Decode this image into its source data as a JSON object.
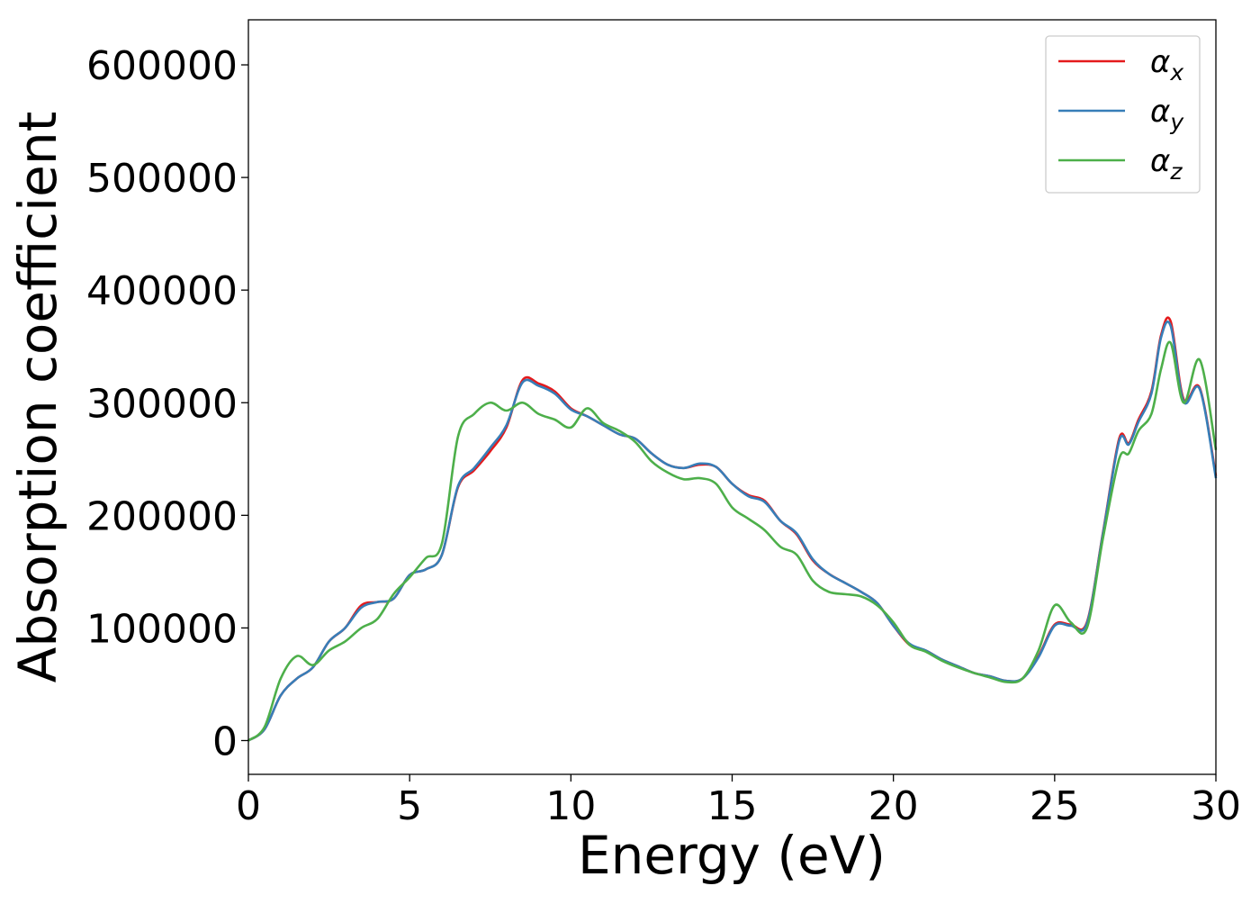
{
  "chart_data": {
    "type": "line",
    "title": "",
    "xlabel": "Energy (eV)",
    "ylabel": "Absorption coefficient",
    "xlim": [
      0,
      30
    ],
    "ylim": [
      -30000,
      640000
    ],
    "xticks": [
      0,
      5,
      10,
      15,
      20,
      25,
      30
    ],
    "yticks": [
      0,
      100000,
      200000,
      300000,
      400000,
      500000,
      600000
    ],
    "grid": false,
    "legend_position": "top-right",
    "series": [
      {
        "name": "α_x",
        "legend_main": "α",
        "legend_sub": "x",
        "color": "#e41a1c",
        "x": [
          0,
          0.5,
          1,
          1.5,
          2,
          2.5,
          3,
          3.5,
          4,
          4.5,
          5,
          5.5,
          6,
          6.5,
          7,
          7.5,
          8,
          8.5,
          9,
          9.5,
          10,
          10.5,
          11,
          11.5,
          12,
          12.5,
          13,
          13.5,
          14,
          14.5,
          15,
          15.5,
          16,
          16.5,
          17,
          17.5,
          18,
          18.5,
          19,
          19.5,
          20,
          20.5,
          21,
          21.5,
          22,
          22.5,
          23,
          23.5,
          24,
          24.5,
          25,
          25.5,
          26,
          26.5,
          27,
          27.3,
          27.6,
          28,
          28.3,
          28.6,
          29,
          29.5,
          30
        ],
        "y": [
          0,
          10000,
          40000,
          55000,
          65000,
          88000,
          100000,
          120000,
          123000,
          126000,
          147000,
          152000,
          165000,
          225000,
          240000,
          257000,
          278000,
          320000,
          317000,
          310000,
          295000,
          288000,
          280000,
          272000,
          268000,
          255000,
          245000,
          242000,
          245000,
          243000,
          228000,
          218000,
          213000,
          195000,
          183000,
          160000,
          148000,
          140000,
          132000,
          122000,
          102000,
          85000,
          80000,
          72000,
          66000,
          60000,
          57000,
          53000,
          55000,
          75000,
          103000,
          103000,
          105000,
          185000,
          268000,
          264000,
          285000,
          310000,
          360000,
          372000,
          303000,
          313000,
          235000
        ]
      },
      {
        "name": "α_y",
        "legend_main": "α",
        "legend_sub": "y",
        "color": "#377eb8",
        "x": [
          0,
          0.5,
          1,
          1.5,
          2,
          2.5,
          3,
          3.5,
          4,
          4.5,
          5,
          5.5,
          6,
          6.5,
          7,
          7.5,
          8,
          8.5,
          9,
          9.5,
          10,
          10.5,
          11,
          11.5,
          12,
          12.5,
          13,
          13.5,
          14,
          14.5,
          15,
          15.5,
          16,
          16.5,
          17,
          17.5,
          18,
          18.5,
          19,
          19.5,
          20,
          20.5,
          21,
          21.5,
          22,
          22.5,
          23,
          23.5,
          24,
          24.5,
          25,
          25.5,
          26,
          26.5,
          27,
          27.3,
          27.6,
          28,
          28.3,
          28.6,
          29,
          29.5,
          30
        ],
        "y": [
          0,
          10000,
          40000,
          55000,
          65000,
          88000,
          100000,
          118000,
          123000,
          126000,
          147000,
          152000,
          165000,
          226000,
          242000,
          260000,
          280000,
          318000,
          315000,
          308000,
          294000,
          288000,
          280000,
          272000,
          268000,
          255000,
          245000,
          242000,
          246000,
          243000,
          228000,
          217000,
          212000,
          195000,
          184000,
          161000,
          148000,
          140000,
          132000,
          122000,
          102000,
          86000,
          80000,
          72000,
          66000,
          60000,
          57000,
          53000,
          55000,
          74000,
          102000,
          102000,
          104000,
          184000,
          266000,
          263000,
          283000,
          308000,
          358000,
          368000,
          301000,
          312000,
          233000
        ]
      },
      {
        "name": "α_z",
        "legend_main": "α",
        "legend_sub": "z",
        "color": "#4daf4a",
        "x": [
          0,
          0.5,
          1,
          1.5,
          2,
          2.5,
          3,
          3.5,
          4,
          4.5,
          5,
          5.5,
          6,
          6.5,
          7,
          7.5,
          8,
          8.5,
          9,
          9.5,
          10,
          10.5,
          11,
          11.5,
          12,
          12.5,
          13,
          13.5,
          14,
          14.5,
          15,
          15.5,
          16,
          16.5,
          17,
          17.5,
          18,
          18.5,
          19,
          19.5,
          20,
          20.5,
          21,
          21.5,
          22,
          22.5,
          23,
          23.5,
          24,
          24.5,
          25,
          25.5,
          26,
          26.5,
          27,
          27.3,
          27.6,
          28,
          28.3,
          28.6,
          29,
          29.5,
          30
        ],
        "y": [
          0,
          12000,
          55000,
          75000,
          67000,
          80000,
          88000,
          100000,
          108000,
          130000,
          145000,
          162000,
          175000,
          270000,
          290000,
          300000,
          293000,
          300000,
          290000,
          285000,
          278000,
          295000,
          282000,
          275000,
          265000,
          248000,
          238000,
          232000,
          233000,
          228000,
          207000,
          197000,
          187000,
          172000,
          165000,
          142000,
          132000,
          130000,
          128000,
          120000,
          105000,
          85000,
          79000,
          71000,
          65000,
          60000,
          56000,
          52000,
          55000,
          80000,
          120000,
          105000,
          100000,
          180000,
          250000,
          255000,
          275000,
          290000,
          330000,
          353000,
          300000,
          338000,
          258000
        ]
      }
    ]
  }
}
